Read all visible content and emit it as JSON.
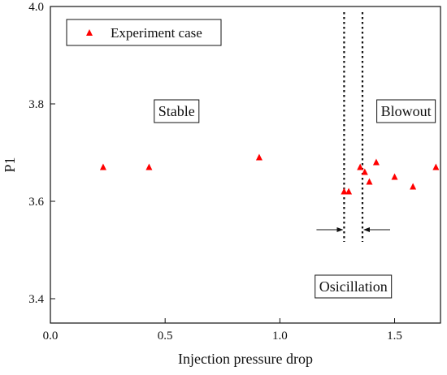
{
  "chart_data": {
    "type": "scatter",
    "title": "",
    "xlabel": "Injection pressure drop",
    "ylabel": "P1",
    "xlim": [
      0.0,
      1.7
    ],
    "ylim": [
      3.35,
      4.0
    ],
    "x_ticks": [
      "0.0",
      "0.5",
      "1.0",
      "1.5"
    ],
    "x_tick_values": [
      0.0,
      0.5,
      1.0,
      1.5
    ],
    "y_ticks": [
      "3.4",
      "3.6",
      "3.8",
      "4.0"
    ],
    "y_tick_values": [
      3.4,
      3.6,
      3.8,
      4.0
    ],
    "grid": false,
    "legend_position": "top-left",
    "series": [
      {
        "name": "Experiment case",
        "marker": "triangle",
        "color": "#ff0000",
        "points": [
          {
            "x": 0.23,
            "y": 3.67
          },
          {
            "x": 0.43,
            "y": 3.67
          },
          {
            "x": 0.91,
            "y": 3.69
          },
          {
            "x": 1.28,
            "y": 3.62
          },
          {
            "x": 1.3,
            "y": 3.62
          },
          {
            "x": 1.35,
            "y": 3.67
          },
          {
            "x": 1.37,
            "y": 3.66
          },
          {
            "x": 1.39,
            "y": 3.64
          },
          {
            "x": 1.42,
            "y": 3.68
          },
          {
            "x": 1.5,
            "y": 3.65
          },
          {
            "x": 1.58,
            "y": 3.63
          },
          {
            "x": 1.68,
            "y": 3.67
          }
        ]
      }
    ],
    "dotted_lines_x": [
      1.28,
      1.36
    ],
    "annotations": [
      {
        "text": "Stable",
        "x": 0.55,
        "y": 3.785
      },
      {
        "text": "Blowout",
        "x": 1.55,
        "y": 3.785
      },
      {
        "text": "Osicillation",
        "x": 1.32,
        "y": 3.425
      }
    ]
  }
}
